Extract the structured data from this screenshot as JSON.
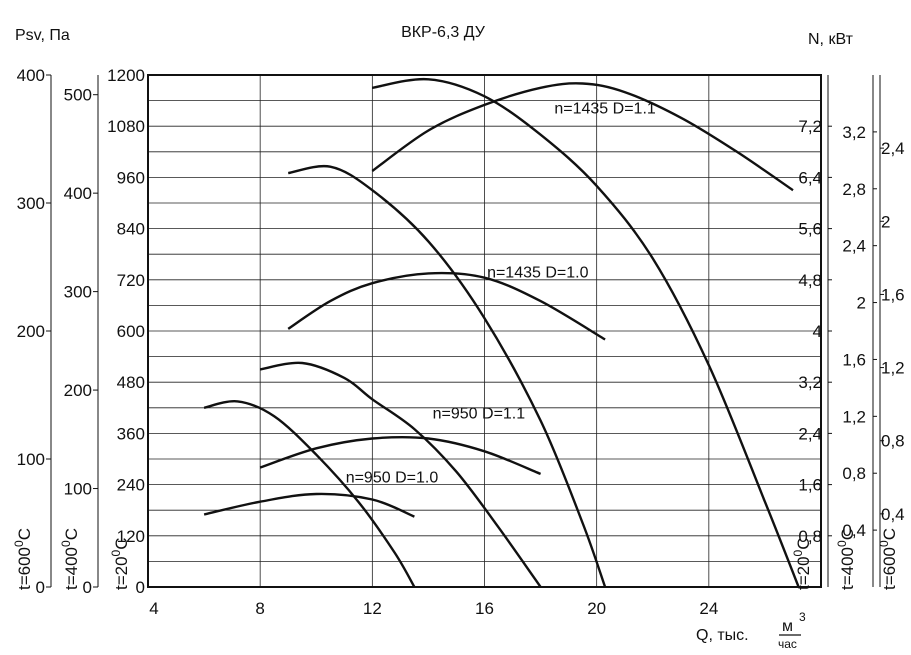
{
  "chart_data": {
    "type": "line",
    "title": "ВКР-6,3 ДУ",
    "left_unit_label": "Psv, Па",
    "right_unit_label": "N, кВт",
    "x_label": "Q, тыс.",
    "x_unit_num": "м",
    "x_unit_sup": "3",
    "x_unit_den": "час",
    "x_range": [
      4,
      28
    ],
    "x_ticks": [
      4,
      8,
      12,
      16,
      20,
      24
    ],
    "y_range": [
      0,
      1200
    ],
    "y_ticks": [
      0,
      120,
      240,
      360,
      480,
      600,
      720,
      840,
      960,
      1080,
      1200
    ],
    "grid": true,
    "left_axes": [
      {
        "label_t": "t=600",
        "label_sup": "0",
        "label_c": "C",
        "max": 400,
        "ticks": [
          0,
          100,
          200,
          300,
          400
        ]
      },
      {
        "label_t": "t=400",
        "label_sup": "0",
        "label_c": "C",
        "max": 520,
        "ticks": [
          0,
          100,
          200,
          300,
          400,
          500
        ]
      },
      {
        "label_t": "t=20",
        "label_sup": "0",
        "label_c": "C",
        "max": 1200,
        "ticks": [
          0,
          120,
          240,
          360,
          480,
          600,
          720,
          840,
          960,
          1080,
          1200
        ]
      }
    ],
    "right_axes": [
      {
        "label_t": "t=20",
        "label_sup": "0",
        "label_c": "C",
        "max": 8.0,
        "ticks": [
          "0,8",
          "1,6",
          "2,4",
          "3,2",
          "4",
          "4,8",
          "5,6",
          "6,4",
          "7,2"
        ],
        "tick_values": [
          0.8,
          1.6,
          2.4,
          3.2,
          4.0,
          4.8,
          5.6,
          6.4,
          7.2
        ]
      },
      {
        "label_t": "t=400",
        "label_sup": "0",
        "label_c": "C",
        "max": 3.6,
        "ticks": [
          "0,4",
          "0,8",
          "1,2",
          "1,6",
          "2",
          "2,4",
          "2,8",
          "3,2"
        ],
        "tick_values": [
          0.4,
          0.8,
          1.2,
          1.6,
          2.0,
          2.4,
          2.8,
          3.2
        ]
      },
      {
        "label_t": "t=600",
        "label_sup": "0",
        "label_c": "C",
        "max": 2.8,
        "ticks": [
          "0,4",
          "0,8",
          "1,2",
          "1,6",
          "2",
          "2,4"
        ],
        "tick_values": [
          0.4,
          0.8,
          1.2,
          1.6,
          2.0,
          2.4
        ]
      }
    ],
    "series": [
      {
        "name": "n=1435 D=1.1",
        "label_at": [
          20.3,
          1110
        ],
        "pressure": [
          [
            12,
            1170
          ],
          [
            14,
            1190
          ],
          [
            16,
            1150
          ],
          [
            18,
            1060
          ],
          [
            20,
            940
          ],
          [
            22,
            770
          ],
          [
            24,
            520
          ],
          [
            26,
            200
          ],
          [
            27.2,
            0
          ]
        ],
        "power": [
          [
            12,
            975
          ],
          [
            14,
            1070
          ],
          [
            16,
            1130
          ],
          [
            18,
            1170
          ],
          [
            19.5,
            1180
          ],
          [
            21,
            1160
          ],
          [
            23,
            1100
          ],
          [
            25,
            1020
          ],
          [
            27,
            930
          ]
        ]
      },
      {
        "name": "n=1435 D=1.0",
        "label_at": [
          17.9,
          725
        ],
        "pressure": [
          [
            9,
            970
          ],
          [
            10.5,
            985
          ],
          [
            12,
            930
          ],
          [
            14,
            810
          ],
          [
            16,
            630
          ],
          [
            18,
            390
          ],
          [
            19.5,
            150
          ],
          [
            20.3,
            0
          ]
        ],
        "power": [
          [
            9,
            605
          ],
          [
            10.5,
            670
          ],
          [
            12,
            712
          ],
          [
            14,
            735
          ],
          [
            16,
            725
          ],
          [
            18,
            670
          ],
          [
            20.3,
            580
          ]
        ]
      },
      {
        "name": "n=950 D=1.1",
        "label_at": [
          15.8,
          395
        ],
        "pressure": [
          [
            8,
            510
          ],
          [
            9.5,
            525
          ],
          [
            11,
            490
          ],
          [
            12,
            440
          ],
          [
            13.5,
            370
          ],
          [
            15,
            270
          ],
          [
            16.5,
            140
          ],
          [
            18,
            0
          ]
        ],
        "power": [
          [
            8,
            280
          ],
          [
            10,
            325
          ],
          [
            12,
            348
          ],
          [
            14,
            348
          ],
          [
            16,
            318
          ],
          [
            18,
            265
          ]
        ]
      },
      {
        "name": "n=950 D=1.0",
        "label_at": [
          12.7,
          245
        ],
        "pressure": [
          [
            6,
            420
          ],
          [
            7.2,
            435
          ],
          [
            8.5,
            400
          ],
          [
            10,
            310
          ],
          [
            11.5,
            200
          ],
          [
            12.8,
            80
          ],
          [
            13.5,
            0
          ]
        ],
        "power": [
          [
            6,
            170
          ],
          [
            8,
            200
          ],
          [
            10,
            218
          ],
          [
            12,
            205
          ],
          [
            13.5,
            165
          ]
        ]
      }
    ]
  }
}
